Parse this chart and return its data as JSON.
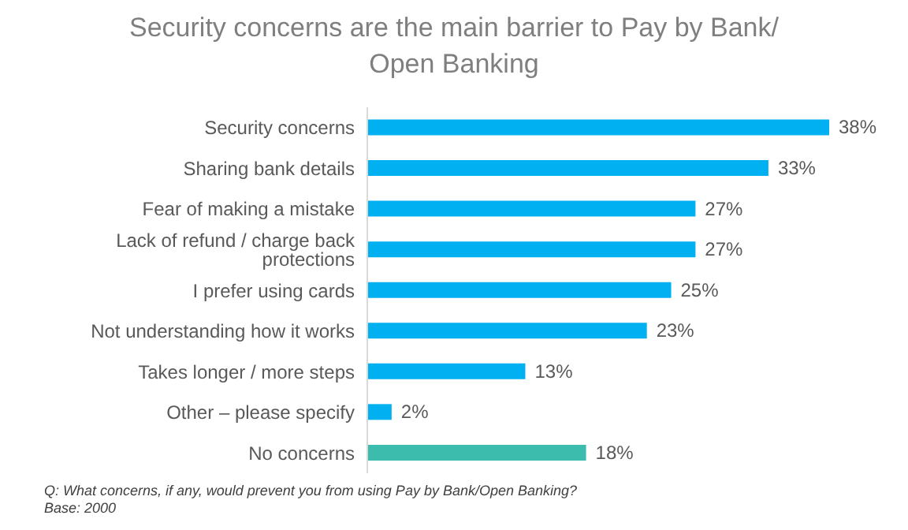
{
  "chart_data": {
    "type": "bar",
    "orientation": "horizontal",
    "title": "Security concerns are the main barrier to Pay by Bank/ Open Banking",
    "categories": [
      "Security concerns",
      "Sharing bank details",
      "Fear of making a mistake",
      "Lack of refund / charge back protections",
      "I prefer using cards",
      "Not understanding how it works",
      "Takes longer / more steps",
      "Other – please specify",
      "No concerns"
    ],
    "values": [
      38,
      33,
      27,
      27,
      25,
      23,
      13,
      2,
      18
    ],
    "value_labels": [
      "38%",
      "33%",
      "27%",
      "27%",
      "25%",
      "23%",
      "13%",
      "2%",
      "18%"
    ],
    "colors": [
      "#00b0f0",
      "#00b0f0",
      "#00b0f0",
      "#00b0f0",
      "#00b0f0",
      "#00b0f0",
      "#00b0f0",
      "#00b0f0",
      "#3cbcac"
    ],
    "annotations": [
      "Q: What concerns, if any, would prevent you from using Pay by Bank/Open Banking?",
      "Base: 2000"
    ]
  }
}
